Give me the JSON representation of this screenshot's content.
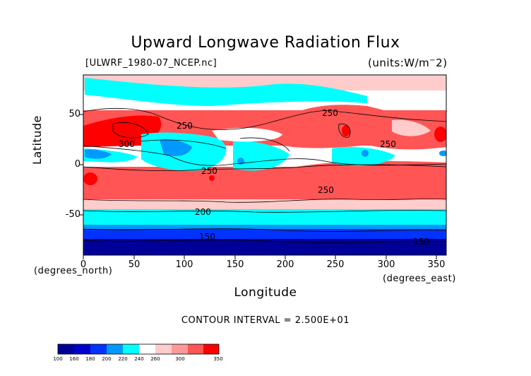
{
  "title": "Upward Longwave Radiation Flux",
  "source_label": "[ULWRF_1980-07_NCEP.nc]",
  "units_label": "(units:W/m^2)",
  "x_axis": {
    "label": "Longitude",
    "note_left": "(degrees_north)",
    "note_right": "(degrees_east)",
    "ticks": [
      "0",
      "50",
      "100",
      "150",
      "200",
      "250",
      "300",
      "350"
    ]
  },
  "y_axis": {
    "label": "Latitude",
    "ticks": [
      "50",
      "0",
      "-50"
    ]
  },
  "contour_interval": "CONTOUR INTERVAL = 2.500E+01",
  "contour_labels": [
    "250",
    "300",
    "250",
    "250",
    "250",
    "250",
    "200",
    "150",
    "150"
  ],
  "colorbar": {
    "labels": [
      "100",
      "160",
      "180",
      "200",
      "220",
      "240",
      "260",
      "300",
      "350"
    ],
    "colors": [
      "#000099",
      "#0000cc",
      "#0033ff",
      "#0099ff",
      "#00ffff",
      "#ffffff",
      "#ffcccc",
      "#ff9999",
      "#ff5555",
      "#ff0000"
    ]
  },
  "chart_data": {
    "type": "heatmap",
    "title": "Upward Longwave Radiation Flux",
    "xlabel": "Longitude",
    "ylabel": "Latitude",
    "xlim": [
      0,
      360
    ],
    "ylim": [
      -90,
      90
    ],
    "units": "W/m^2",
    "contour_interval": 25,
    "levels": [
      100,
      160,
      180,
      200,
      220,
      240,
      260,
      300,
      350
    ],
    "zonal_bands": [
      {
        "lat_range": [
          -90,
          -75
        ],
        "value": 150
      },
      {
        "lat_range": [
          -75,
          -60
        ],
        "value": 175
      },
      {
        "lat_range": [
          -60,
          -48
        ],
        "value": 205
      },
      {
        "lat_range": [
          -48,
          -35
        ],
        "value": 225
      },
      {
        "lat_range": [
          -35,
          -5
        ],
        "value": 270
      },
      {
        "lat_range": [
          -5,
          15
        ],
        "value": 230
      },
      {
        "lat_range": [
          15,
          40
        ],
        "value": 275
      },
      {
        "lat_range": [
          40,
          65
        ],
        "value": 245
      },
      {
        "lat_range": [
          65,
          90
        ],
        "value": 230
      }
    ],
    "grid": false
  }
}
